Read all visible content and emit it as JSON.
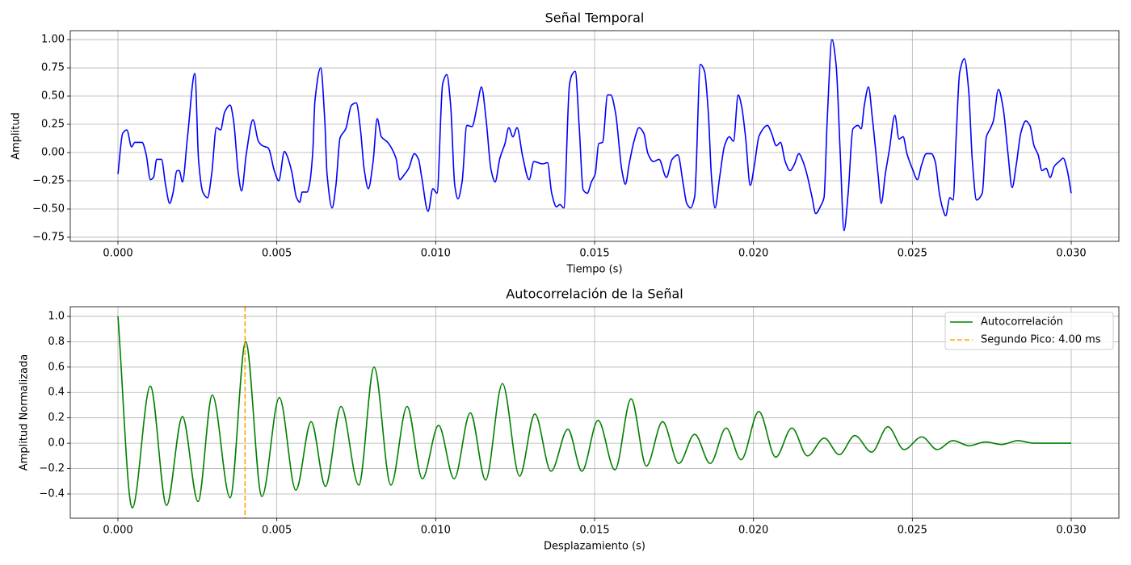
{
  "chart_data": [
    {
      "type": "line",
      "title": "Señal Temporal",
      "xlabel": "Tiempo (s)",
      "ylabel": "Amplitud",
      "grid": true,
      "xlim": [
        -0.0015,
        0.0315
      ],
      "ylim": [
        -0.786,
        1.079
      ],
      "xticks": [
        {
          "value": 0,
          "label": "0.000"
        },
        {
          "value": 0.005,
          "label": "0.005"
        },
        {
          "value": 0.01,
          "label": "0.010"
        },
        {
          "value": 0.015,
          "label": "0.015"
        },
        {
          "value": 0.02,
          "label": "0.020"
        },
        {
          "value": 0.025,
          "label": "0.025"
        },
        {
          "value": 0.03,
          "label": "0.030"
        }
      ],
      "yticks": [
        {
          "value": -0.75,
          "label": "−0.75"
        },
        {
          "value": -0.5,
          "label": "−0.50"
        },
        {
          "value": -0.25,
          "label": "−0.25"
        },
        {
          "value": 0,
          "label": "0.00"
        },
        {
          "value": 0.25,
          "label": "0.25"
        },
        {
          "value": 0.5,
          "label": "0.50"
        },
        {
          "value": 0.75,
          "label": "0.75"
        },
        {
          "value": 1,
          "label": "1.00"
        }
      ],
      "x": [
        0,
        0.00015,
        0.00028,
        0.00043,
        0.00053,
        0.00076,
        0.00089,
        0.00102,
        0.00112,
        0.00122,
        0.00137,
        0.0015,
        0.00163,
        0.00173,
        0.00186,
        0.00193,
        0.00203,
        0.00219,
        0.00242,
        0.00254,
        0.00267,
        0.00282,
        0.00295,
        0.0031,
        0.00323,
        0.00336,
        0.00353,
        0.00364,
        0.00379,
        0.00389,
        0.00404,
        0.00425,
        0.00442,
        0.00455,
        0.00473,
        0.00493,
        0.00506,
        0.00524,
        0.00531,
        0.00547,
        0.00562,
        0.00572,
        0.0058,
        0.00595,
        0.00603,
        0.00613,
        0.0062,
        0.00638,
        0.00651,
        0.00658,
        0.00674,
        0.00686,
        0.00699,
        0.00717,
        0.00735,
        0.0075,
        0.00763,
        0.00775,
        0.00788,
        0.00803,
        0.00816,
        0.00829,
        0.00849,
        0.00875,
        0.00887,
        0.009,
        0.00915,
        0.00933,
        0.00946,
        0.00956,
        0.00976,
        0.00991,
        0.01004,
        0.01022,
        0.01035,
        0.01047,
        0.0106,
        0.0107,
        0.01083,
        0.01098,
        0.01114,
        0.01131,
        0.01144,
        0.01159,
        0.01174,
        0.01187,
        0.01202,
        0.01218,
        0.0123,
        0.01243,
        0.01256,
        0.01274,
        0.01294,
        0.01309,
        0.01337,
        0.01352,
        0.01365,
        0.0138,
        0.01391,
        0.01403,
        0.01421,
        0.01429,
        0.01439,
        0.01452,
        0.01464,
        0.01477,
        0.0149,
        0.01502,
        0.01513,
        0.01525,
        0.01541,
        0.01551,
        0.01566,
        0.01586,
        0.01597,
        0.01609,
        0.01624,
        0.0164,
        0.01655,
        0.01668,
        0.01685,
        0.01703,
        0.01726,
        0.01744,
        0.01762,
        0.01779,
        0.0179,
        0.01802,
        0.01815,
        0.01833,
        0.01846,
        0.01858,
        0.01868,
        0.01879,
        0.01894,
        0.01909,
        0.01924,
        0.01937,
        0.01952,
        0.01962,
        0.01975,
        0.0199,
        0.02003,
        0.02018,
        0.02044,
        0.02057,
        0.02072,
        0.02085,
        0.021,
        0.02115,
        0.02128,
        0.02143,
        0.02156,
        0.02168,
        0.02184,
        0.02196,
        0.02212,
        0.02222,
        0.02232,
        0.02247,
        0.0226,
        0.02273,
        0.02285,
        0.02298,
        0.02313,
        0.02329,
        0.02339,
        0.02349,
        0.02362,
        0.02374,
        0.02392,
        0.02402,
        0.02415,
        0.02428,
        0.02445,
        0.02458,
        0.02471,
        0.02483,
        0.02501,
        0.02516,
        0.02529,
        0.02544,
        0.0256,
        0.02572,
        0.02585,
        0.02595,
        0.02605,
        0.02618,
        0.02628,
        0.02638,
        0.02649,
        0.02664,
        0.02677,
        0.02689,
        0.02702,
        0.0272,
        0.02733,
        0.02745,
        0.02755,
        0.02771,
        0.02786,
        0.02801,
        0.02814,
        0.02827,
        0.02842,
        0.02857,
        0.0287,
        0.02883,
        0.02896,
        0.02908,
        0.02921,
        0.02934,
        0.02947,
        0.02962,
        0.02975,
        0.02987,
        0.03
      ],
      "series": [
        {
          "color": "#0000ff",
          "values": [
            -0.19,
            0.17,
            0.2,
            0.05,
            0.09,
            0.09,
            -0.02,
            -0.24,
            -0.22,
            -0.06,
            -0.06,
            -0.29,
            -0.45,
            -0.36,
            -0.16,
            -0.16,
            -0.26,
            0.14,
            0.7,
            -0.08,
            -0.35,
            -0.4,
            -0.19,
            0.22,
            0.2,
            0.36,
            0.42,
            0.28,
            -0.19,
            -0.34,
            -0.01,
            0.29,
            0.1,
            0.06,
            0.04,
            -0.17,
            -0.25,
            0.01,
            -0.02,
            -0.17,
            -0.4,
            -0.44,
            -0.35,
            -0.35,
            -0.28,
            0,
            0.46,
            0.75,
            0.28,
            -0.19,
            -0.49,
            -0.29,
            0.13,
            0.21,
            0.42,
            0.44,
            0.21,
            -0.15,
            -0.32,
            -0.08,
            0.3,
            0.14,
            0.09,
            -0.05,
            -0.24,
            -0.2,
            -0.14,
            -0.01,
            -0.06,
            -0.22,
            -0.52,
            -0.32,
            -0.36,
            0.61,
            0.69,
            0.42,
            -0.29,
            -0.41,
            -0.26,
            0.24,
            0.23,
            0.42,
            0.58,
            0.28,
            -0.15,
            -0.26,
            -0.05,
            0.08,
            0.22,
            0.14,
            0.22,
            -0.04,
            -0.24,
            -0.08,
            -0.1,
            -0.09,
            -0.36,
            -0.48,
            -0.46,
            -0.49,
            0.6,
            0.69,
            0.72,
            0.21,
            -0.33,
            -0.36,
            -0.26,
            -0.19,
            0.08,
            0.09,
            0.51,
            0.51,
            0.35,
            -0.16,
            -0.28,
            -0.1,
            0.1,
            0.22,
            0.17,
            -0.01,
            -0.08,
            -0.06,
            -0.22,
            -0.06,
            -0.02,
            -0.28,
            -0.45,
            -0.49,
            -0.39,
            0.78,
            0.72,
            0.35,
            -0.22,
            -0.49,
            -0.21,
            0.06,
            0.14,
            0.1,
            0.51,
            0.42,
            0.14,
            -0.29,
            -0.11,
            0.15,
            0.24,
            0.17,
            0.06,
            0.09,
            -0.08,
            -0.16,
            -0.11,
            -0.01,
            -0.08,
            -0.19,
            -0.39,
            -0.54,
            -0.47,
            -0.4,
            0.28,
            1.0,
            0.78,
            0,
            -0.69,
            -0.36,
            0.21,
            0.24,
            0.21,
            0.42,
            0.58,
            0.31,
            -0.19,
            -0.45,
            -0.19,
            0.03,
            0.33,
            0.12,
            0.14,
            -0.01,
            -0.15,
            -0.24,
            -0.11,
            -0.01,
            -0.01,
            -0.08,
            -0.36,
            -0.49,
            -0.56,
            -0.4,
            -0.42,
            0.14,
            0.71,
            0.83,
            0.56,
            -0.08,
            -0.42,
            -0.36,
            0.14,
            0.21,
            0.28,
            0.56,
            0.39,
            -0.01,
            -0.31,
            -0.11,
            0.18,
            0.28,
            0.24,
            0.06,
            -0.02,
            -0.16,
            -0.14,
            -0.22,
            -0.12,
            -0.08,
            -0.05,
            -0.15,
            -0.36
          ]
        }
      ]
    },
    {
      "type": "line",
      "title": "Autocorrelación de la Señal",
      "xlabel": "Desplazamiento (s)",
      "ylabel": "Amplitud Normalizada",
      "grid": true,
      "legend": "upper right",
      "xlim": [
        -0.0015,
        0.0315
      ],
      "ylim": [
        -0.591,
        1.076
      ],
      "xticks": [
        {
          "value": 0,
          "label": "0.000"
        },
        {
          "value": 0.005,
          "label": "0.005"
        },
        {
          "value": 0.01,
          "label": "0.010"
        },
        {
          "value": 0.015,
          "label": "0.015"
        },
        {
          "value": 0.02,
          "label": "0.020"
        },
        {
          "value": 0.025,
          "label": "0.025"
        },
        {
          "value": 0.03,
          "label": "0.030"
        }
      ],
      "yticks": [
        {
          "value": -0.4,
          "label": "−0.4"
        },
        {
          "value": -0.2,
          "label": "−0.2"
        },
        {
          "value": 0,
          "label": "0.0"
        },
        0.2,
        0.4,
        0.6,
        0.8,
        {
          "value": 1,
          "label": "1.0"
        }
      ],
      "x": [
        0,
        0.00045,
        0.00102,
        0.00153,
        0.00203,
        0.00252,
        0.00297,
        0.00353,
        0.00402,
        0.00453,
        0.00508,
        0.0056,
        0.00608,
        0.00653,
        0.00702,
        0.00758,
        0.00806,
        0.00859,
        0.0091,
        0.00958,
        0.01009,
        0.01058,
        0.01109,
        0.01157,
        0.0121,
        0.01264,
        0.01312,
        0.01363,
        0.01416,
        0.0146,
        0.01511,
        0.01564,
        0.01615,
        0.01663,
        0.01714,
        0.01765,
        0.01815,
        0.01864,
        0.01914,
        0.01961,
        0.02017,
        0.0207,
        0.02121,
        0.0217,
        0.02223,
        0.0227,
        0.02319,
        0.02372,
        0.02423,
        0.02474,
        0.0253,
        0.02578,
        0.02628,
        0.02679,
        0.0273,
        0.02781,
        0.02832,
        0.02883,
        0.02934,
        0.03
      ],
      "series": [
        {
          "name": "Autocorrelación",
          "color": "#008000",
          "values": [
            1.0,
            -0.51,
            0.45,
            -0.49,
            0.21,
            -0.46,
            0.38,
            -0.43,
            0.8,
            -0.42,
            0.36,
            -0.37,
            0.17,
            -0.34,
            0.29,
            -0.33,
            0.6,
            -0.33,
            0.29,
            -0.28,
            0.14,
            -0.28,
            0.24,
            -0.29,
            0.47,
            -0.26,
            0.23,
            -0.22,
            0.11,
            -0.22,
            0.18,
            -0.21,
            0.35,
            -0.18,
            0.17,
            -0.16,
            0.07,
            -0.16,
            0.12,
            -0.13,
            0.25,
            -0.11,
            0.12,
            -0.1,
            0.04,
            -0.09,
            0.06,
            -0.07,
            0.13,
            -0.05,
            0.05,
            -0.05,
            0.02,
            -0.02,
            0.01,
            -0.01,
            0.02,
            0,
            0,
            0
          ]
        }
      ],
      "vlines": [
        {
          "name": "Segundo Pico: 4.00 ms",
          "x": 0.004,
          "color": "#ffa500"
        }
      ]
    }
  ]
}
